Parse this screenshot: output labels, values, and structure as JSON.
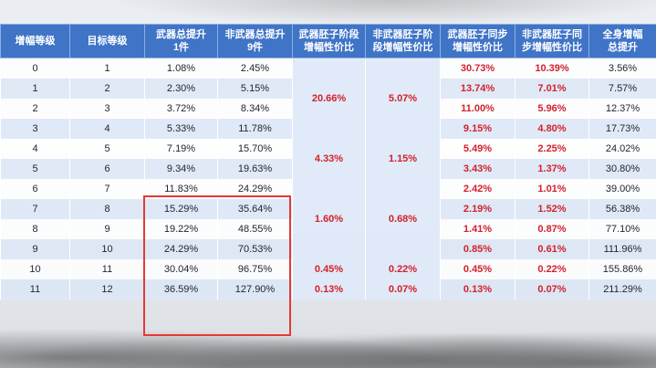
{
  "headers": [
    "增幅等级",
    "目标等级",
    "武器总提升\n1件",
    "非武器总提升\n9件",
    "武器胚子阶段\n增幅性价比",
    "非武器胚子阶\n段增幅性价比",
    "武器胚子同步\n增幅性价比",
    "非武器胚子同\n步增幅性价比",
    "全身增幅\n总提升"
  ],
  "rows": [
    {
      "lvl": "0",
      "target": "1",
      "weapon_total": "1.08%",
      "nonweapon_total": "2.45%",
      "weapon_sync": "30.73%",
      "nonweapon_sync": "10.39%",
      "full_total": "3.56%"
    },
    {
      "lvl": "1",
      "target": "2",
      "weapon_total": "2.30%",
      "nonweapon_total": "5.15%",
      "weapon_sync": "13.74%",
      "nonweapon_sync": "7.01%",
      "full_total": "7.57%"
    },
    {
      "lvl": "2",
      "target": "3",
      "weapon_total": "3.72%",
      "nonweapon_total": "8.34%",
      "weapon_sync": "11.00%",
      "nonweapon_sync": "5.96%",
      "full_total": "12.37%"
    },
    {
      "lvl": "3",
      "target": "4",
      "weapon_total": "5.33%",
      "nonweapon_total": "11.78%",
      "weapon_sync": "9.15%",
      "nonweapon_sync": "4.80%",
      "full_total": "17.73%"
    },
    {
      "lvl": "4",
      "target": "5",
      "weapon_total": "7.19%",
      "nonweapon_total": "15.70%",
      "weapon_sync": "5.49%",
      "nonweapon_sync": "2.25%",
      "full_total": "24.02%"
    },
    {
      "lvl": "5",
      "target": "6",
      "weapon_total": "9.34%",
      "nonweapon_total": "19.63%",
      "weapon_sync": "3.43%",
      "nonweapon_sync": "1.37%",
      "full_total": "30.80%"
    },
    {
      "lvl": "6",
      "target": "7",
      "weapon_total": "11.83%",
      "nonweapon_total": "24.29%",
      "weapon_sync": "2.42%",
      "nonweapon_sync": "1.01%",
      "full_total": "39.00%"
    },
    {
      "lvl": "7",
      "target": "8",
      "weapon_total": "15.29%",
      "nonweapon_total": "35.64%",
      "weapon_sync": "2.19%",
      "nonweapon_sync": "1.52%",
      "full_total": "56.38%"
    },
    {
      "lvl": "8",
      "target": "9",
      "weapon_total": "19.22%",
      "nonweapon_total": "48.55%",
      "weapon_sync": "1.41%",
      "nonweapon_sync": "0.87%",
      "full_total": "77.10%"
    },
    {
      "lvl": "9",
      "target": "10",
      "weapon_total": "24.29%",
      "nonweapon_total": "70.53%",
      "weapon_sync": "0.85%",
      "nonweapon_sync": "0.61%",
      "full_total": "111.96%"
    },
    {
      "lvl": "10",
      "target": "11",
      "weapon_total": "30.04%",
      "nonweapon_total": "96.75%",
      "weapon_sync": "0.45%",
      "nonweapon_sync": "0.22%",
      "full_total": "155.86%"
    },
    {
      "lvl": "11",
      "target": "12",
      "weapon_total": "36.59%",
      "nonweapon_total": "127.90%",
      "weapon_sync": "0.13%",
      "nonweapon_sync": "0.07%",
      "full_total": "211.29%"
    }
  ],
  "stage_groups": [
    {
      "weapon_stage": "20.66%",
      "nonweapon_stage": "5.07%"
    },
    {
      "weapon_stage": "4.33%",
      "nonweapon_stage": "1.15%"
    },
    {
      "weapon_stage": "1.60%",
      "nonweapon_stage": "0.68%"
    },
    {
      "weapon_stage": "0.45%",
      "nonweapon_stage": "0.22%"
    },
    {
      "weapon_stage": "0.13%",
      "nonweapon_stage": "0.07%"
    }
  ],
  "colors": {
    "header_bg": "#3f74c7",
    "header_text": "#ffffff",
    "highlight_red": "#d3212c",
    "box_border": "#e53935"
  }
}
